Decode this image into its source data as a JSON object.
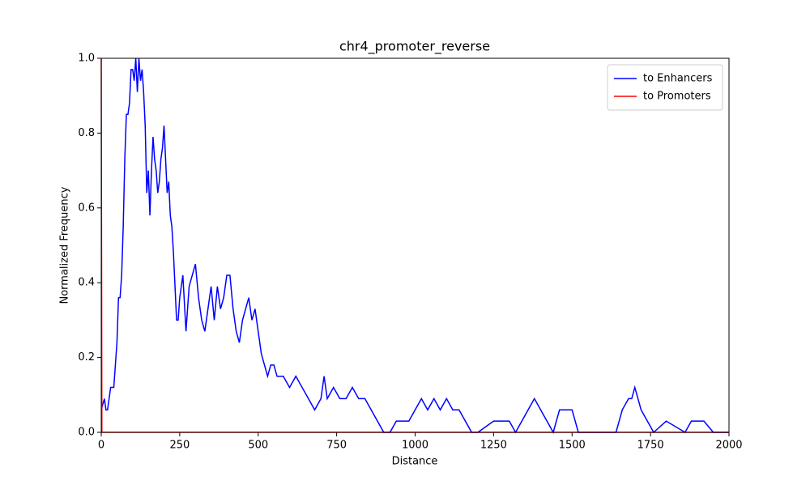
{
  "chart_data": {
    "type": "line",
    "title": "chr4_promoter_reverse",
    "x_label": "Distance",
    "y_label": "Normalized Frequency",
    "xlim": [
      0,
      2000
    ],
    "ylim": [
      0,
      1
    ],
    "xticks": [
      0,
      250,
      500,
      750,
      1000,
      1250,
      1500,
      1750,
      2000
    ],
    "yticks": [
      {
        "value": 0,
        "label": "0.0"
      },
      {
        "value": 0.2,
        "label": "0.2"
      },
      {
        "value": 0.4,
        "label": "0.4"
      },
      {
        "value": 0.6,
        "label": "0.6"
      },
      {
        "value": 0.8,
        "label": "0.8"
      },
      {
        "value": 1,
        "label": "1.0"
      }
    ],
    "legend": "upper right",
    "series": [
      {
        "name": "to Enhancers",
        "color": "#0000ff",
        "x": [
          0,
          10,
          15,
          20,
          30,
          40,
          50,
          55,
          60,
          65,
          70,
          75,
          80,
          85,
          90,
          95,
          100,
          105,
          110,
          115,
          120,
          125,
          130,
          135,
          140,
          145,
          150,
          155,
          160,
          165,
          170,
          175,
          180,
          185,
          190,
          195,
          200,
          205,
          210,
          215,
          220,
          225,
          230,
          235,
          240,
          245,
          250,
          260,
          270,
          280,
          290,
          300,
          310,
          320,
          330,
          340,
          350,
          360,
          370,
          380,
          390,
          400,
          410,
          420,
          430,
          440,
          450,
          460,
          470,
          480,
          490,
          500,
          510,
          520,
          530,
          540,
          550,
          560,
          580,
          600,
          620,
          640,
          660,
          680,
          700,
          710,
          720,
          740,
          760,
          780,
          800,
          820,
          840,
          860,
          880,
          900,
          920,
          940,
          960,
          980,
          1000,
          1020,
          1040,
          1060,
          1080,
          1100,
          1120,
          1140,
          1160,
          1180,
          1200,
          1250,
          1300,
          1320,
          1340,
          1360,
          1380,
          1400,
          1420,
          1440,
          1460,
          1480,
          1500,
          1520,
          1560,
          1600,
          1640,
          1660,
          1680,
          1690,
          1700,
          1720,
          1740,
          1760,
          1800,
          1860,
          1880,
          1920,
          1950,
          2000
        ],
        "values": [
          0.06,
          0.09,
          0.06,
          0.06,
          0.12,
          0.12,
          0.24,
          0.36,
          0.36,
          0.42,
          0.55,
          0.73,
          0.85,
          0.85,
          0.88,
          0.97,
          0.97,
          0.94,
          1.0,
          0.91,
          1.0,
          0.94,
          0.97,
          0.91,
          0.82,
          0.64,
          0.7,
          0.58,
          0.7,
          0.79,
          0.73,
          0.7,
          0.64,
          0.67,
          0.73,
          0.76,
          0.82,
          0.73,
          0.64,
          0.67,
          0.58,
          0.55,
          0.48,
          0.39,
          0.3,
          0.3,
          0.36,
          0.42,
          0.27,
          0.39,
          0.42,
          0.45,
          0.36,
          0.3,
          0.27,
          0.33,
          0.39,
          0.3,
          0.39,
          0.33,
          0.36,
          0.42,
          0.42,
          0.33,
          0.27,
          0.24,
          0.3,
          0.33,
          0.36,
          0.3,
          0.33,
          0.27,
          0.21,
          0.18,
          0.15,
          0.18,
          0.18,
          0.15,
          0.15,
          0.12,
          0.15,
          0.12,
          0.09,
          0.06,
          0.09,
          0.15,
          0.09,
          0.12,
          0.09,
          0.09,
          0.12,
          0.09,
          0.09,
          0.06,
          0.03,
          0.0,
          0.0,
          0.03,
          0.03,
          0.03,
          0.06,
          0.09,
          0.06,
          0.09,
          0.06,
          0.09,
          0.06,
          0.06,
          0.03,
          0.0,
          0.0,
          0.03,
          0.03,
          0.0,
          0.03,
          0.06,
          0.09,
          0.06,
          0.03,
          0.0,
          0.06,
          0.06,
          0.06,
          0.0,
          0.0,
          0.0,
          0.0,
          0.06,
          0.09,
          0.09,
          0.12,
          0.06,
          0.03,
          0.0,
          0.03,
          0.0,
          0.03,
          0.03,
          0.0,
          0.0
        ]
      },
      {
        "name": "to Promoters",
        "color": "#ff0000",
        "x": [
          0,
          2,
          2000
        ],
        "values": [
          1,
          0,
          0
        ]
      }
    ]
  }
}
